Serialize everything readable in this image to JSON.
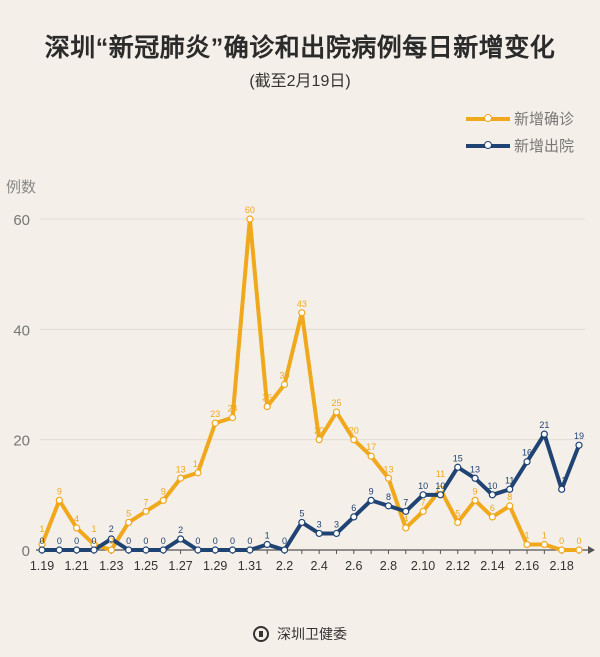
{
  "title": "深圳“新冠肺炎”确诊和出院病例每日新增变化",
  "subtitle": "(截至2月19日)",
  "footer": {
    "logo_text": "深圳卫健委"
  },
  "colors": {
    "confirmed": "#f0a81c",
    "discharged": "#1f4373",
    "background": "#f4efe8"
  },
  "chart_data": {
    "type": "line",
    "title": "深圳“新冠肺炎”确诊和出院病例每日新增变化",
    "subtitle": "(截至2月19日)",
    "ylabel": "例数",
    "xlabel": "",
    "ylim": [
      0,
      60
    ],
    "yticks": [
      0,
      20,
      40,
      60
    ],
    "grid": true,
    "legend": "top-right",
    "x": [
      "1.19",
      "1.20",
      "1.21",
      "1.22",
      "1.23",
      "1.24",
      "1.25",
      "1.26",
      "1.27",
      "1.28",
      "1.29",
      "1.30",
      "1.31",
      "2.1",
      "2.2",
      "2.3",
      "2.4",
      "2.5",
      "2.6",
      "2.7",
      "2.8",
      "2.9",
      "2.10",
      "2.11",
      "2.12",
      "2.13",
      "2.14",
      "2.15",
      "2.16",
      "2.17",
      "2.18",
      "2.19"
    ],
    "xtick_labels": [
      "1.19",
      "1.21",
      "1.23",
      "1.25",
      "1.27",
      "1.29",
      "1.31",
      "2.2",
      "2.4",
      "2.6",
      "2.8",
      "2.10",
      "2.12",
      "2.14",
      "2.16",
      "2.18"
    ],
    "series": [
      {
        "name": "新增确诊",
        "color": "#f0a81c",
        "values": [
          1,
          9,
          4,
          1,
          0,
          5,
          7,
          9,
          13,
          14,
          23,
          24,
          60,
          26,
          30,
          43,
          20,
          25,
          20,
          17,
          13,
          4,
          7,
          11,
          5,
          9,
          6,
          8,
          1,
          1,
          0,
          0
        ]
      },
      {
        "name": "新增出院",
        "color": "#1f4373",
        "values": [
          0,
          0,
          0,
          0,
          2,
          0,
          0,
          0,
          2,
          0,
          0,
          0,
          0,
          1,
          0,
          5,
          3,
          3,
          6,
          9,
          8,
          7,
          10,
          10,
          15,
          13,
          10,
          11,
          16,
          21,
          11,
          19
        ]
      }
    ]
  }
}
